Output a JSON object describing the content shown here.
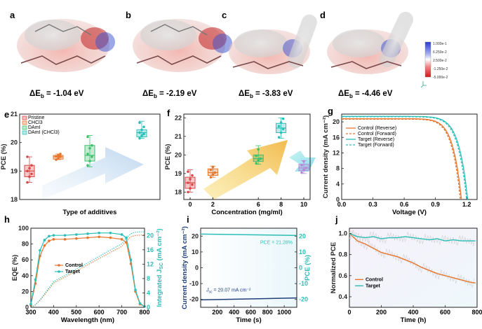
{
  "panels": {
    "a": {
      "letter": "a",
      "energy_prefix": "ΔE",
      "energy_sub": "b",
      "energy_value": " = -1.04 eV"
    },
    "b": {
      "letter": "b",
      "energy_prefix": "ΔE",
      "energy_sub": "b",
      "energy_value": " = -2.19 eV"
    },
    "c": {
      "letter": "c",
      "energy_prefix": "ΔE",
      "energy_sub": "b",
      "energy_value": " = -3.83 eV"
    },
    "d": {
      "letter": "d",
      "energy_prefix": "ΔE",
      "energy_sub": "b",
      "energy_value": " = -4.46 eV"
    },
    "e": {
      "letter": "e"
    },
    "f": {
      "letter": "f"
    },
    "g": {
      "letter": "g"
    },
    "h": {
      "letter": "h"
    },
    "i": {
      "letter": "i"
    },
    "j": {
      "letter": "j"
    }
  },
  "colorbar": {
    "labels": [
      "1.000e-1",
      "6.250e-2",
      "2.500e-2",
      "-1.250e-2",
      "-5.000e-2"
    ]
  },
  "colors": {
    "orange": "#e8762d",
    "teal": "#2bbfb8",
    "red": "#d94848",
    "green": "#3ec06c",
    "purple": "#b58bd6",
    "blue": "#1f3f7a"
  },
  "chart_data": [
    {
      "id": "e",
      "type": "box",
      "xlabel": "Type of additives",
      "ylabel": "PCE (%)",
      "ylim": [
        18,
        21
      ],
      "yticks": [
        "18",
        "19",
        "20",
        "21"
      ],
      "legend": [
        "Pristine",
        "CHCl3",
        "DAmI",
        "DAmI (CHCl3)"
      ],
      "series": [
        {
          "name": "Pristine",
          "color": "#d94848",
          "q1": 18.8,
          "median": 19.0,
          "q3": 19.2,
          "min": 18.6,
          "max": 19.5,
          "points": [
            18.6,
            18.8,
            18.9,
            19.0,
            19.1,
            19.2,
            19.5
          ]
        },
        {
          "name": "CHCl3",
          "color": "#e8762d",
          "q1": 19.42,
          "median": 19.5,
          "q3": 19.55,
          "min": 19.4,
          "max": 19.6,
          "points": [
            19.4,
            19.45,
            19.5,
            19.52,
            19.55,
            19.6
          ]
        },
        {
          "name": "DAmI",
          "color": "#3ec06c",
          "q1": 19.35,
          "median": 19.55,
          "q3": 19.9,
          "min": 19.15,
          "max": 20.25,
          "points": [
            19.2,
            19.35,
            19.5,
            19.6,
            19.8,
            19.9,
            20.2
          ]
        },
        {
          "name": "DAmI (CHCl3)",
          "color": "#2bbfb8",
          "q1": 20.2,
          "median": 20.35,
          "q3": 20.45,
          "min": 20.15,
          "max": 20.75,
          "points": [
            20.15,
            20.25,
            20.3,
            20.35,
            20.45,
            20.55,
            20.7
          ]
        }
      ]
    },
    {
      "id": "f",
      "type": "box",
      "xlabel": "Concentration (mg/ml)",
      "ylabel": "PCE (%)",
      "ylim": [
        17.6,
        22.2
      ],
      "yticks": [
        "18",
        "19",
        "20",
        "21",
        "22"
      ],
      "categories": [
        "0",
        "2",
        "6",
        "8",
        "10"
      ],
      "series": [
        {
          "x": 0,
          "color": "#d94848",
          "q1": 18.2,
          "median": 18.5,
          "q3": 18.8,
          "min": 18.0,
          "max": 19.2,
          "points": [
            18.0,
            18.2,
            18.4,
            18.5,
            18.7,
            18.9,
            19.1
          ]
        },
        {
          "x": 2,
          "color": "#e8762d",
          "q1": 18.9,
          "median": 19.05,
          "q3": 19.25,
          "min": 18.8,
          "max": 19.4,
          "points": [
            18.8,
            18.95,
            19.05,
            19.2,
            19.35
          ]
        },
        {
          "x": 6,
          "color": "#3ec06c",
          "q1": 19.65,
          "median": 19.8,
          "q3": 20.0,
          "min": 19.5,
          "max": 20.5,
          "points": [
            19.55,
            19.7,
            19.8,
            19.95,
            20.3
          ]
        },
        {
          "x": 8,
          "color": "#2bbfb8",
          "q1": 21.2,
          "median": 21.45,
          "q3": 21.7,
          "min": 20.9,
          "max": 22.0,
          "points": [
            20.95,
            21.2,
            21.4,
            21.55,
            21.75,
            21.95
          ]
        },
        {
          "x": 10,
          "color": "#b58bd6",
          "q1": 19.15,
          "median": 19.3,
          "q3": 19.5,
          "min": 19.0,
          "max": 19.7,
          "points": [
            19.05,
            19.2,
            19.3,
            19.45,
            19.65
          ]
        }
      ]
    },
    {
      "id": "g",
      "type": "line",
      "xlabel": "Voltage (V)",
      "ylabel": "Current density (mA cm⁻²)",
      "xlim": [
        0,
        1.3
      ],
      "ylim": [
        0,
        22
      ],
      "xticks": [
        "0.0",
        "0.3",
        "0.6",
        "0.9",
        "1.2"
      ],
      "yticks": [
        "0",
        "4",
        "8",
        "12",
        "16",
        "20"
      ],
      "legend": [
        "Control (Reverse)",
        "Control (Forward)",
        "Target (Reverse)",
        "Target (Forward)"
      ],
      "series": [
        {
          "name": "Control (Reverse)",
          "color": "#e8762d",
          "dash": false,
          "jsc": 20.8,
          "voc": 1.15
        },
        {
          "name": "Control (Forward)",
          "color": "#e8762d",
          "dash": true,
          "jsc": 20.7,
          "voc": 1.14
        },
        {
          "name": "Target (Reverse)",
          "color": "#2bbfb8",
          "dash": false,
          "jsc": 21.4,
          "voc": 1.21
        },
        {
          "name": "Target (Forward)",
          "color": "#2bbfb8",
          "dash": true,
          "jsc": 21.3,
          "voc": 1.2
        }
      ]
    },
    {
      "id": "h",
      "type": "line",
      "xlabel": "Wavelength (nm)",
      "ylabel": "EQE (%)",
      "y2label": "Integrated J",
      "y2label_sub": "SC",
      "y2label_unit": " (mA cm⁻²)",
      "xlim": [
        300,
        800
      ],
      "ylim": [
        0,
        100
      ],
      "y2lim": [
        0,
        22
      ],
      "xticks": [
        "300",
        "400",
        "500",
        "600",
        "700",
        "800"
      ],
      "yticks": [
        "0",
        "20",
        "40",
        "60",
        "80",
        "100"
      ],
      "y2ticks": [
        "0",
        "4",
        "8",
        "12",
        "16",
        "20"
      ],
      "legend": [
        "Control",
        "Target"
      ],
      "series": [
        {
          "name": "Control",
          "color": "#e8762d",
          "x": [
            300,
            320,
            340,
            360,
            380,
            400,
            450,
            500,
            550,
            600,
            650,
            700,
            720,
            740,
            760,
            780,
            800
          ],
          "y": [
            3,
            30,
            65,
            78,
            84,
            86,
            86,
            87,
            88,
            89,
            88,
            86,
            82,
            55,
            20,
            4,
            1
          ]
        },
        {
          "name": "Target",
          "color": "#2bbfb8",
          "x": [
            300,
            320,
            340,
            360,
            380,
            400,
            450,
            500,
            550,
            600,
            650,
            700,
            720,
            740,
            760,
            780,
            800
          ],
          "y": [
            4,
            35,
            72,
            85,
            90,
            91,
            91,
            92,
            93,
            94,
            94,
            92,
            88,
            60,
            22,
            5,
            1
          ]
        }
      ]
    },
    {
      "id": "i",
      "type": "line",
      "xlabel": "Time (s)",
      "ylabel": "Current density (mA cm⁻²)",
      "y2label": "PCE (%)",
      "xlim": [
        0,
        1150
      ],
      "ylim": [
        -25,
        25
      ],
      "y2lim": [
        -25,
        25
      ],
      "xticks": [
        "200",
        "400",
        "600",
        "800",
        "1000"
      ],
      "yticks": [
        "-20",
        "-10",
        "0",
        "10",
        "20"
      ],
      "y2ticks": [
        "-20",
        "-10",
        "0",
        "10",
        "20"
      ],
      "pce_label": "PCE = 21.28%",
      "jsc_label_prefix": "J",
      "jsc_label_sub": "sc",
      "jsc_label_value": " = 20.07 mA cm⁻²",
      "series": [
        {
          "name": "PCE",
          "color": "#2bbfb8",
          "x": [
            0,
            1150
          ],
          "y": [
            21.3,
            20.4
          ]
        },
        {
          "name": "Jsc",
          "color": "#1f3f7a",
          "x": [
            0,
            1150
          ],
          "y": [
            -20.3,
            -19.1
          ]
        }
      ]
    },
    {
      "id": "j",
      "type": "line",
      "xlabel": "Time (h)",
      "ylabel": "Normalized PCE",
      "xlim": [
        0,
        800
      ],
      "ylim": [
        0.3,
        1.05
      ],
      "xticks": [
        "0",
        "200",
        "400",
        "600",
        "800"
      ],
      "yticks": [
        "0.4",
        "0.6",
        "0.8",
        "1.0"
      ],
      "legend": [
        "Control",
        "Target"
      ],
      "series": [
        {
          "name": "Control",
          "color": "#e8762d",
          "x": [
            0,
            50,
            100,
            150,
            200,
            250,
            300,
            350,
            400,
            450,
            500,
            550,
            600,
            650,
            700,
            750,
            790
          ],
          "y": [
            1.0,
            0.93,
            0.9,
            0.86,
            0.82,
            0.8,
            0.78,
            0.75,
            0.72,
            0.68,
            0.65,
            0.62,
            0.6,
            0.58,
            0.56,
            0.54,
            0.53
          ]
        },
        {
          "name": "Target",
          "color": "#2bbfb8",
          "x": [
            0,
            50,
            100,
            150,
            200,
            250,
            300,
            350,
            400,
            450,
            500,
            550,
            600,
            650,
            700,
            750,
            790
          ],
          "y": [
            1.0,
            0.97,
            0.96,
            0.97,
            0.95,
            0.96,
            0.96,
            0.97,
            0.96,
            0.95,
            0.94,
            0.95,
            0.93,
            0.94,
            0.93,
            0.93,
            0.93
          ]
        }
      ]
    }
  ]
}
